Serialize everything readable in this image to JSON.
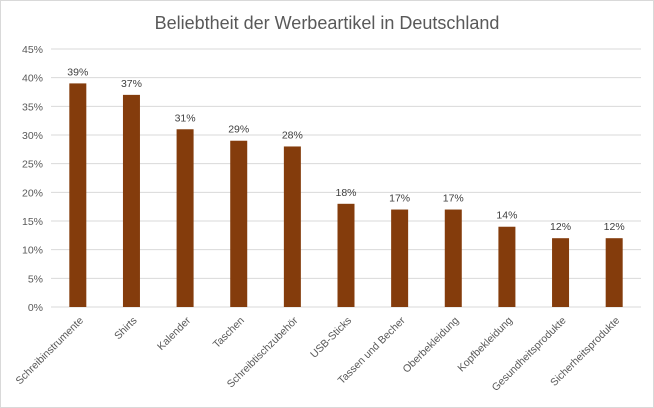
{
  "chart_data": {
    "type": "bar",
    "title": "Beliebtheit der Werbeartikel in Deutschland",
    "xlabel": "",
    "ylabel": "",
    "categories": [
      "Schreibinstrumente",
      "Shirts",
      "Kalender",
      "Taschen",
      "Schreibtischzubehör",
      "USB-Sticks",
      "Tassen und Becher",
      "Oberbekleidung",
      "Kopfbekleidung",
      "Gesundheitsprodukte",
      "Sicherheitsprodukte"
    ],
    "values": [
      39,
      37,
      31,
      29,
      28,
      18,
      17,
      17,
      14,
      12,
      12
    ],
    "data_labels": [
      "39%",
      "37%",
      "31%",
      "29%",
      "28%",
      "18%",
      "17%",
      "17%",
      "14%",
      "12%",
      "12%"
    ],
    "ylim": [
      0,
      45
    ],
    "yticks": [
      0,
      5,
      10,
      15,
      20,
      25,
      30,
      35,
      40,
      45
    ],
    "ytick_labels": [
      "0%",
      "5%",
      "10%",
      "15%",
      "20%",
      "25%",
      "30%",
      "35%",
      "40%",
      "45%"
    ],
    "grid": true,
    "legend": "none",
    "bar_color": "#843C0C",
    "grid_color": "#D9D9D9"
  }
}
